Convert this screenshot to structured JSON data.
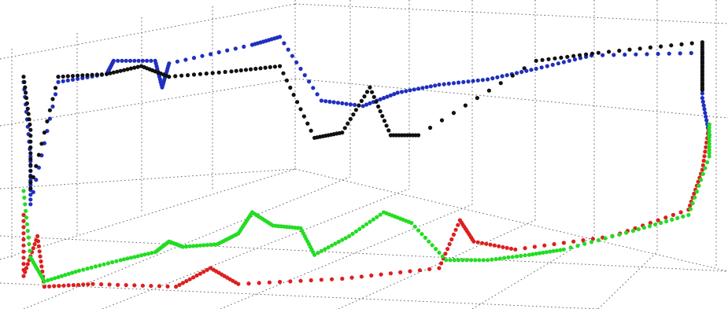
{
  "chart_data": {
    "type": "scatter",
    "projection": "3d",
    "title": "",
    "xlabel": "",
    "ylabel": "",
    "zlabel": "",
    "grid": true,
    "legend": "none",
    "tick_labels": "none",
    "series": [
      {
        "color": "#1f2fbf",
        "points": [
          [
            0.0,
            0.78
          ],
          [
            0.01,
            0.5
          ],
          [
            0.01,
            0.32
          ],
          [
            0.05,
            0.78
          ],
          [
            0.12,
            0.81
          ],
          [
            0.13,
            0.86
          ],
          [
            0.19,
            0.86
          ],
          [
            0.2,
            0.76
          ],
          [
            0.21,
            0.85
          ],
          [
            0.33,
            0.92
          ],
          [
            0.37,
            0.95
          ],
          [
            0.43,
            0.71
          ],
          [
            0.49,
            0.69
          ],
          [
            0.54,
            0.74
          ],
          [
            0.6,
            0.77
          ],
          [
            0.67,
            0.79
          ],
          [
            0.74,
            0.83
          ],
          [
            0.82,
            0.88
          ],
          [
            0.98,
            0.89
          ],
          [
            0.98,
            0.72
          ],
          [
            0.99,
            0.58
          ]
        ]
      },
      {
        "color": "#111111",
        "points": [
          [
            0.0,
            0.8
          ],
          [
            0.01,
            0.6
          ],
          [
            0.01,
            0.38
          ],
          [
            0.05,
            0.8
          ],
          [
            0.12,
            0.81
          ],
          [
            0.17,
            0.84
          ],
          [
            0.21,
            0.8
          ],
          [
            0.3,
            0.82
          ],
          [
            0.37,
            0.84
          ],
          [
            0.42,
            0.57
          ],
          [
            0.46,
            0.59
          ],
          [
            0.5,
            0.76
          ],
          [
            0.53,
            0.58
          ],
          [
            0.57,
            0.58
          ],
          [
            0.74,
            0.86
          ],
          [
            0.83,
            0.89
          ],
          [
            0.98,
            0.93
          ],
          [
            0.98,
            0.84
          ],
          [
            0.98,
            0.75
          ]
        ]
      },
      {
        "color": "#dd1f1f",
        "points": [
          [
            0.0,
            0.28
          ],
          [
            0.0,
            0.05
          ],
          [
            0.02,
            0.2
          ],
          [
            0.03,
            0.01
          ],
          [
            0.1,
            0.02
          ],
          [
            0.22,
            0.01
          ],
          [
            0.27,
            0.08
          ],
          [
            0.31,
            0.02
          ],
          [
            0.46,
            0.04
          ],
          [
            0.6,
            0.08
          ],
          [
            0.63,
            0.26
          ],
          [
            0.65,
            0.18
          ],
          [
            0.71,
            0.15
          ],
          [
            0.85,
            0.2
          ],
          [
            0.96,
            0.3
          ],
          [
            0.98,
            0.45
          ],
          [
            0.99,
            0.62
          ]
        ]
      },
      {
        "color": "#22dd22",
        "points": [
          [
            0.0,
            0.37
          ],
          [
            0.01,
            0.12
          ],
          [
            0.03,
            0.03
          ],
          [
            0.08,
            0.07
          ],
          [
            0.14,
            0.11
          ],
          [
            0.19,
            0.14
          ],
          [
            0.21,
            0.18
          ],
          [
            0.23,
            0.16
          ],
          [
            0.28,
            0.17
          ],
          [
            0.31,
            0.21
          ],
          [
            0.33,
            0.29
          ],
          [
            0.36,
            0.24
          ],
          [
            0.4,
            0.23
          ],
          [
            0.42,
            0.13
          ],
          [
            0.47,
            0.2
          ],
          [
            0.52,
            0.29
          ],
          [
            0.56,
            0.25
          ],
          [
            0.61,
            0.11
          ],
          [
            0.67,
            0.11
          ],
          [
            0.73,
            0.13
          ],
          [
            0.78,
            0.15
          ],
          [
            0.88,
            0.22
          ],
          [
            0.96,
            0.28
          ],
          [
            0.99,
            0.5
          ],
          [
            0.99,
            0.62
          ]
        ]
      }
    ]
  }
}
